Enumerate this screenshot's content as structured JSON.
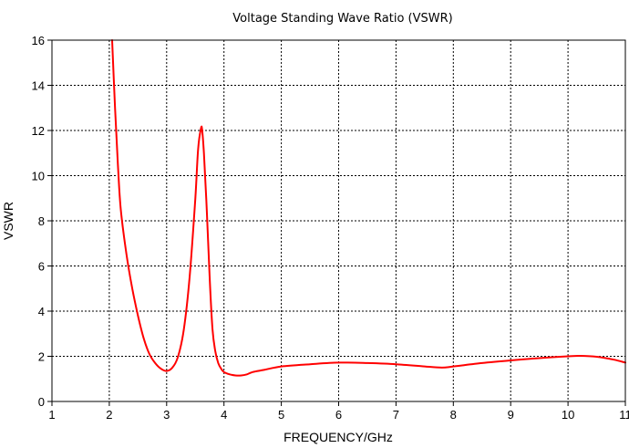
{
  "chart_data": {
    "type": "line",
    "title": "Voltage Standing Wave Ratio (VSWR)",
    "xlabel": "FREQUENCY/GHz",
    "ylabel": "VSWR",
    "xlim": [
      1,
      11
    ],
    "ylim": [
      0,
      16
    ],
    "xticks": [
      "1",
      "2",
      "3",
      "4",
      "5",
      "6",
      "7",
      "8",
      "9",
      "10",
      "11"
    ],
    "yticks": [
      "0",
      "2",
      "4",
      "6",
      "8",
      "10",
      "12",
      "14",
      "16"
    ],
    "grid": true,
    "series": [
      {
        "color": "#ff0000",
        "x": [
          2.05,
          2.1,
          2.15,
          2.2,
          2.3,
          2.4,
          2.5,
          2.6,
          2.7,
          2.8,
          2.9,
          3.0,
          3.1,
          3.2,
          3.3,
          3.4,
          3.5,
          3.55,
          3.6,
          3.62,
          3.65,
          3.7,
          3.75,
          3.8,
          3.85,
          3.9,
          3.95,
          4.0,
          4.1,
          4.2,
          4.3,
          4.4,
          4.5,
          4.7,
          5.0,
          5.5,
          6.0,
          6.5,
          7.0,
          7.5,
          7.8,
          8.0,
          8.5,
          9.0,
          9.5,
          10.0,
          10.2,
          10.5,
          10.8,
          11.0
        ],
        "y": [
          16.0,
          13.0,
          10.5,
          8.5,
          6.5,
          5.0,
          3.8,
          2.8,
          2.1,
          1.7,
          1.45,
          1.35,
          1.5,
          2.0,
          3.2,
          5.5,
          9.0,
          11.2,
          12.1,
          12.0,
          11.0,
          8.5,
          5.5,
          3.2,
          2.2,
          1.7,
          1.45,
          1.3,
          1.2,
          1.15,
          1.15,
          1.2,
          1.3,
          1.4,
          1.55,
          1.65,
          1.72,
          1.7,
          1.65,
          1.55,
          1.5,
          1.55,
          1.7,
          1.82,
          1.92,
          2.0,
          2.02,
          1.98,
          1.85,
          1.72
        ]
      }
    ]
  }
}
